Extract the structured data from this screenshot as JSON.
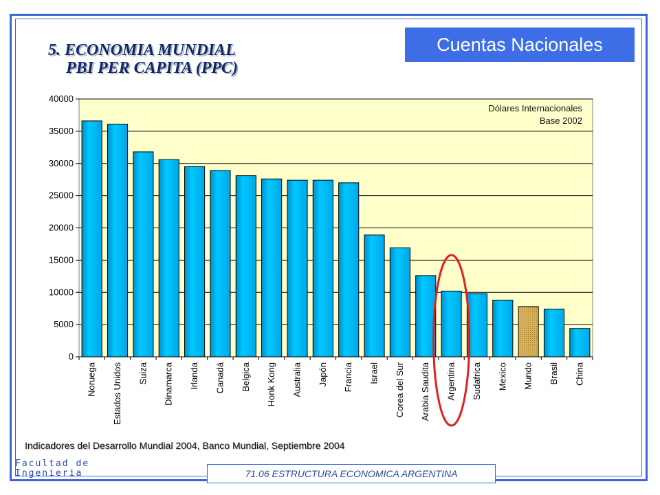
{
  "header": {
    "section": "Cuentas Nacionales",
    "title_line1": "5. ECONOMIA MUNDIAL",
    "title_line2": "PBI PER CAPITA (PPC)"
  },
  "footer": {
    "source": "Indicadores del Desarrollo Mundial 2004, Banco Mundial, Septiembre 2004",
    "course": "71.06 ESTRUCTURA ECONOMICA ARGENTINA",
    "logo_line1": "Facultad de",
    "logo_line2": "Ingenieria"
  },
  "colors": {
    "bar": "#00c0ff",
    "bar_highlight": "#c9a24a",
    "plot_bg": "#ffffcc",
    "circle": "#e02020"
  },
  "chart_data": {
    "type": "bar",
    "units_line1": "Dólares Internacionales",
    "units_line2": "Base 2002",
    "categories": [
      "Noruega",
      "Estados Unidos",
      "Suiza",
      "Dinamarca",
      "Irlanda",
      "Canadá",
      "Belgica",
      "Honk Kong",
      "Australia",
      "Japón",
      "Francia",
      "Israel",
      "Corea del Sur",
      "Arabia Saudita",
      "Argentina",
      "Sudafrica",
      "Mexico",
      "Mundo",
      "Brasil",
      "China"
    ],
    "values": [
      36600,
      36100,
      31800,
      30600,
      29500,
      28900,
      28100,
      27600,
      27400,
      27400,
      27000,
      18900,
      16900,
      12600,
      10200,
      9800,
      8800,
      7800,
      7400,
      4400
    ],
    "highlighted_category": "Mundo",
    "circled_category": "Argentina",
    "ylim": [
      0,
      40000
    ],
    "yticks": [
      0,
      5000,
      10000,
      15000,
      20000,
      25000,
      30000,
      35000,
      40000
    ],
    "grid": true
  }
}
